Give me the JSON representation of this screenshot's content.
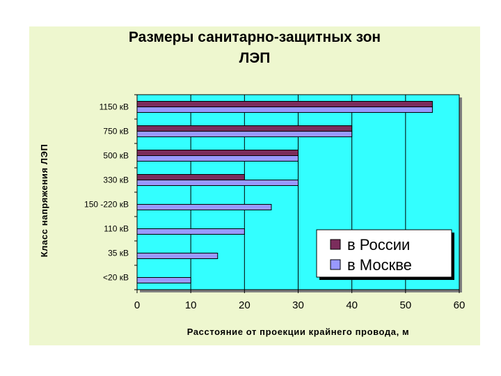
{
  "chart_data": {
    "type": "bar",
    "orientation": "horizontal",
    "title_line1": "Размеры санитарно-защитных зон",
    "title_line2": "ЛЭП",
    "xlabel": "Расстояние от проекции крайнего провода, м",
    "ylabel": "Класс напряжения ЛЭП",
    "xlim": [
      0,
      60
    ],
    "xticks": [
      0,
      10,
      20,
      30,
      40,
      50,
      60
    ],
    "categories": [
      "1150 кВ",
      "750 кВ",
      "500 кВ",
      "330 кВ",
      "150 -220 кВ",
      "110 кВ",
      "35 кВ",
      "<20 кВ"
    ],
    "series": [
      {
        "name": "в России",
        "color": "#7b2d5c",
        "values": [
          55,
          40,
          30,
          20,
          null,
          null,
          null,
          null
        ]
      },
      {
        "name": "в Москве",
        "color": "#9999ff",
        "values": [
          55,
          40,
          30,
          30,
          25,
          20,
          15,
          10
        ]
      }
    ],
    "plot_background": "#33ffff",
    "grid": "vertical",
    "legend_position": "bottom-right"
  }
}
